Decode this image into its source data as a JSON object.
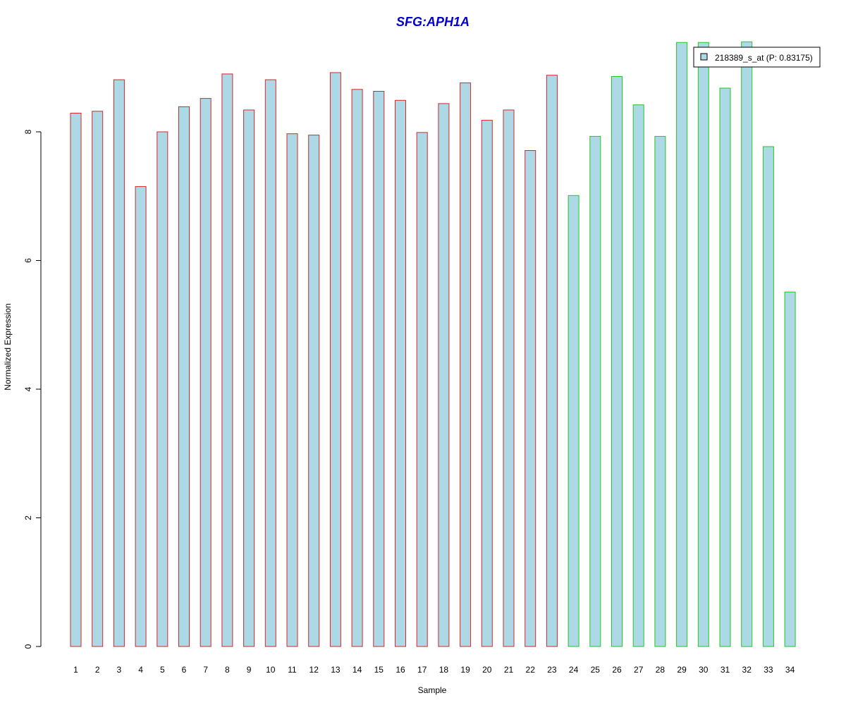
{
  "chart_data": {
    "type": "bar",
    "title": "SFG:APH1A",
    "xlabel": "Sample",
    "ylabel": "Normalized Expression",
    "ylim": [
      0,
      9.4
    ],
    "yticks": [
      "0",
      "2",
      "4",
      "6",
      "8"
    ],
    "grid": false,
    "legend_position": "top-right",
    "categories": [
      "1",
      "2",
      "3",
      "4",
      "5",
      "6",
      "7",
      "8",
      "9",
      "10",
      "11",
      "12",
      "13",
      "14",
      "15",
      "16",
      "17",
      "18",
      "19",
      "20",
      "21",
      "22",
      "23",
      "24",
      "25",
      "26",
      "27",
      "28",
      "29",
      "30",
      "31",
      "32",
      "33",
      "34"
    ],
    "series": [
      {
        "name": "218389_s_at (P: 0.83175)",
        "values": [
          8.29,
          8.32,
          8.81,
          7.15,
          8.0,
          8.39,
          8.52,
          8.9,
          8.34,
          8.81,
          7.97,
          7.95,
          8.92,
          8.66,
          8.63,
          8.49,
          7.99,
          8.44,
          8.76,
          8.18,
          8.34,
          7.71,
          8.88,
          7.01,
          7.93,
          8.86,
          8.42,
          7.93,
          9.39,
          9.39,
          8.68,
          9.4,
          7.77,
          5.51
        ]
      }
    ],
    "groups": [
      {
        "border_color": "#d62728",
        "samples": [
          "1",
          "2",
          "3",
          "4",
          "5",
          "6",
          "7",
          "8",
          "9",
          "10",
          "11",
          "12",
          "13",
          "14",
          "15",
          "16",
          "17",
          "18",
          "19",
          "20",
          "21",
          "22",
          "23"
        ]
      },
      {
        "border_color": "#22c922",
        "samples": [
          "24",
          "25",
          "26",
          "27",
          "28",
          "29",
          "30",
          "31",
          "32",
          "33",
          "34"
        ]
      }
    ],
    "colors": {
      "bar_fill": "#add8e6",
      "title": "#0000cc",
      "axis": "#000000"
    }
  }
}
